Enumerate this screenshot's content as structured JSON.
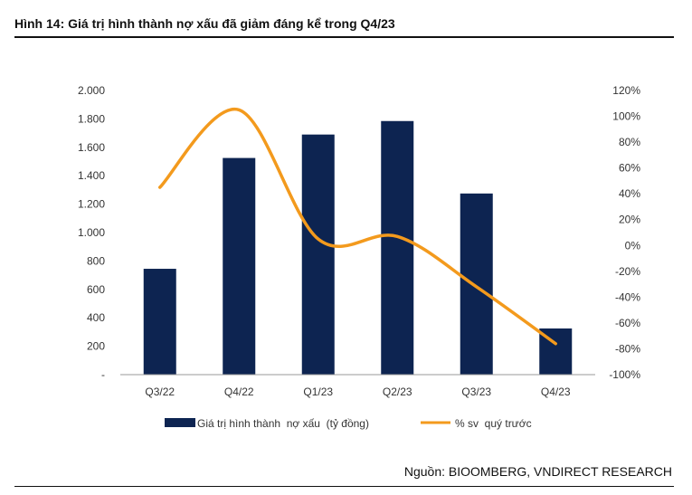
{
  "header": {
    "title": "Hình 14: Giá trị hình thành nợ xấu đã giảm đáng kể trong Q4/23"
  },
  "footer": {
    "source": "Nguồn: BIOOMBERG, VNDIRECT RESEARCH"
  },
  "colors": {
    "bar": "#0d2451",
    "line": "#f39a1d",
    "axis": "#9a9a9a",
    "text": "#333333"
  },
  "chart_data": {
    "type": "bar",
    "categories": [
      "Q3/22",
      "Q4/22",
      "Q1/23",
      "Q2/23",
      "Q3/23",
      "Q4/23"
    ],
    "series": [
      {
        "name": "Giá trị hình thành  nợ xấu  (tỷ đồng)",
        "type": "bar",
        "axis": "left",
        "values": [
          745,
          1525,
          1690,
          1785,
          1275,
          325
        ]
      },
      {
        "name": "% sv  quý trước",
        "type": "line",
        "axis": "right",
        "smooth": true,
        "values": [
          45,
          105,
          5,
          7,
          -32,
          -76
        ]
      }
    ],
    "y_left": {
      "ylim": [
        0,
        2000
      ],
      "ticks": [
        "-",
        "200",
        "400",
        "600",
        "800",
        "1.000",
        "1.200",
        "1.400",
        "1.600",
        "1.800",
        "2.000"
      ]
    },
    "y_right": {
      "ylim": [
        -100,
        120
      ],
      "ticks": [
        "-100%",
        "-80%",
        "-60%",
        "-40%",
        "-20%",
        "0%",
        "20%",
        "40%",
        "60%",
        "80%",
        "100%",
        "120%"
      ]
    },
    "grid": false,
    "legend_position": "bottom"
  }
}
